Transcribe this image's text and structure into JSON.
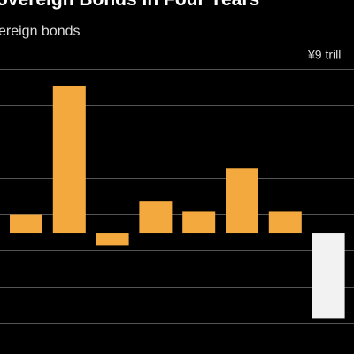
{
  "chart_data": {
    "type": "bar",
    "title": "overeign Bonds in Four Years",
    "subtitle": "ereign bonds",
    "categories": [
      null,
      null,
      null,
      null,
      null,
      null,
      null,
      null
    ],
    "values": [
      1.0,
      8.1,
      -0.7,
      1.75,
      1.2,
      3.55,
      1.2,
      -4.7
    ],
    "colors": [
      "#f4a93f",
      "#f4a93f",
      "#f4a93f",
      "#f4a93f",
      "#f4a93f",
      "#f4a93f",
      "#f4a93f",
      "#f2f2f2"
    ],
    "ylim": [
      -6.68,
      12.83
    ],
    "yticks": [
      {
        "value": -5,
        "label": null
      },
      {
        "value": -3,
        "label": null
      },
      {
        "value": -1,
        "label": null
      },
      {
        "value": 1,
        "label": null
      },
      {
        "value": 3,
        "label": null
      },
      {
        "value": 5,
        "label": null
      },
      {
        "value": 7,
        "label": null
      },
      {
        "value": 9,
        "label": "¥9 trill"
      }
    ],
    "grid": true
  }
}
